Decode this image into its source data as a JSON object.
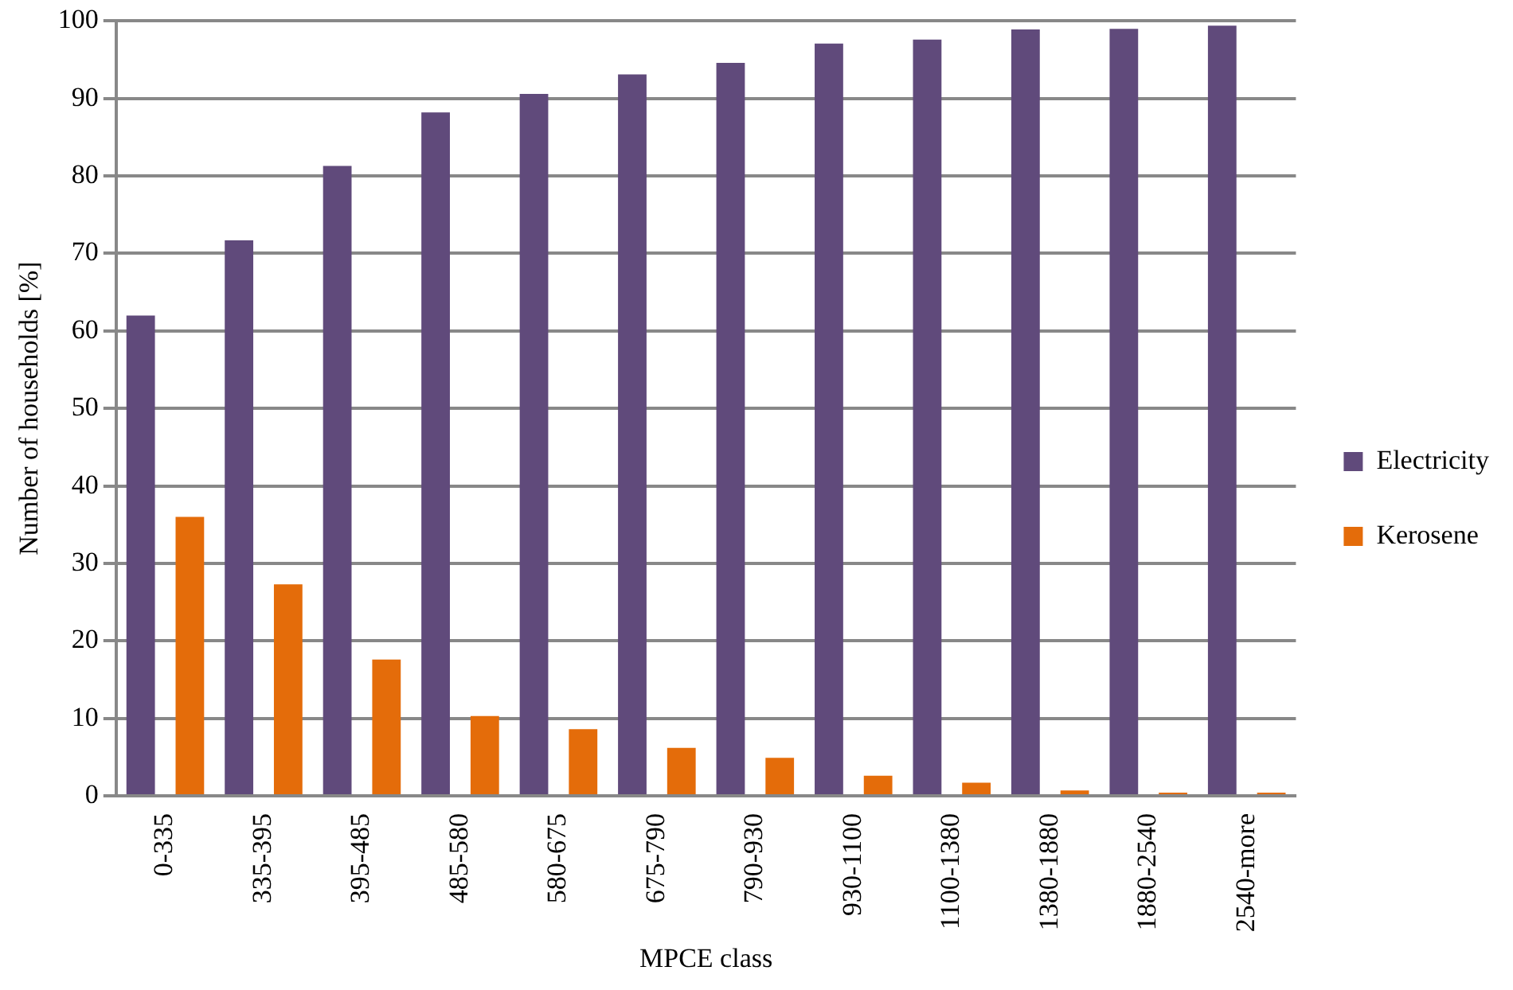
{
  "chart_data": {
    "type": "bar",
    "xlabel": "MPCE class",
    "ylabel": "Number of households [%]",
    "categories": [
      "0-335",
      "335-395",
      "395-485",
      "485-580",
      "580-675",
      "675-790",
      "790-930",
      "930-1100",
      "1100-1380",
      "1380-1880",
      "1880-2540",
      "2540-more"
    ],
    "series": [
      {
        "name": "Electricity",
        "color": "#604a7b",
        "values": [
          62.0,
          71.7,
          81.3,
          88.2,
          90.6,
          93.1,
          94.6,
          97.1,
          97.6,
          98.9,
          99.0,
          99.4
        ]
      },
      {
        "name": "Kerosene",
        "color": "#e46c0a",
        "values": [
          36.0,
          27.3,
          17.6,
          10.3,
          8.6,
          6.2,
          4.9,
          2.6,
          1.7,
          0.7,
          0.4,
          0.4
        ]
      }
    ],
    "ylim": [
      0,
      100
    ],
    "yticks": [
      0,
      10,
      20,
      30,
      40,
      50,
      60,
      70,
      80,
      90,
      100
    ],
    "grid": "y",
    "legend": "right"
  }
}
